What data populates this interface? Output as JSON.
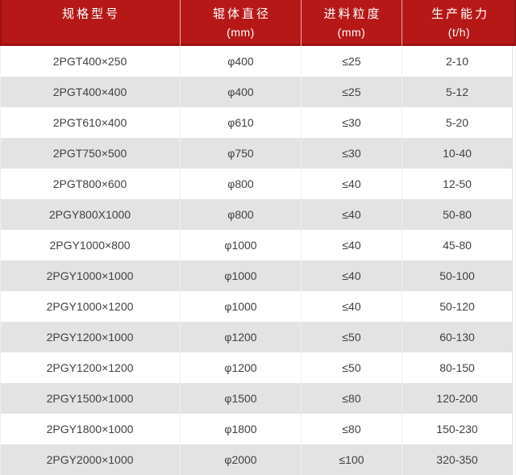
{
  "table": {
    "columns": [
      {
        "title": "规格型号",
        "unit": ""
      },
      {
        "title": "辊体直径",
        "unit": "(mm)"
      },
      {
        "title": "进料粒度",
        "unit": "(mm)"
      },
      {
        "title": "生产能力",
        "unit": "(t/h)"
      }
    ]
  },
  "chart_data": {
    "type": "table",
    "columns": [
      "规格型号",
      "辊体直径 (mm)",
      "进料粒度 (mm)",
      "生产能力 (t/h)"
    ],
    "rows": [
      [
        "2PGT400×250",
        "φ400",
        "≤25",
        "2-10"
      ],
      [
        "2PGT400×400",
        "φ400",
        "≤25",
        "5-12"
      ],
      [
        "2PGT610×400",
        "φ610",
        "≤30",
        "5-20"
      ],
      [
        "2PGT750×500",
        "φ750",
        "≤30",
        "10-40"
      ],
      [
        "2PGT800×600",
        "φ800",
        "≤40",
        "12-50"
      ],
      [
        "2PGY800X1000",
        "φ800",
        "≤40",
        "50-80"
      ],
      [
        "2PGY1000×800",
        "φ1000",
        "≤40",
        "45-80"
      ],
      [
        "2PGY1000×1000",
        "φ1000",
        "≤40",
        "50-100"
      ],
      [
        "2PGY1000×1200",
        "φ1000",
        "≤40",
        "50-120"
      ],
      [
        "2PGY1200×1000",
        "φ1200",
        "≤50",
        "60-130"
      ],
      [
        "2PGY1200×1200",
        "φ1200",
        "≤50",
        "80-150"
      ],
      [
        "2PGY1500×1000",
        "φ1500",
        "≤80",
        "120-200"
      ],
      [
        "2PGY1800×1000",
        "φ1800",
        "≤80",
        "150-230"
      ],
      [
        "2PGY2000×1000",
        "φ2000",
        "≤100",
        "320-350"
      ]
    ]
  },
  "colors": {
    "header_bg": "#b61818",
    "header_border": "#9c1011",
    "header_text": "#ffffff",
    "row_bg": "#ffffff",
    "row_alt_bg": "#e3e3e3",
    "body_text": "#414141",
    "grid_line": "#efefef"
  }
}
